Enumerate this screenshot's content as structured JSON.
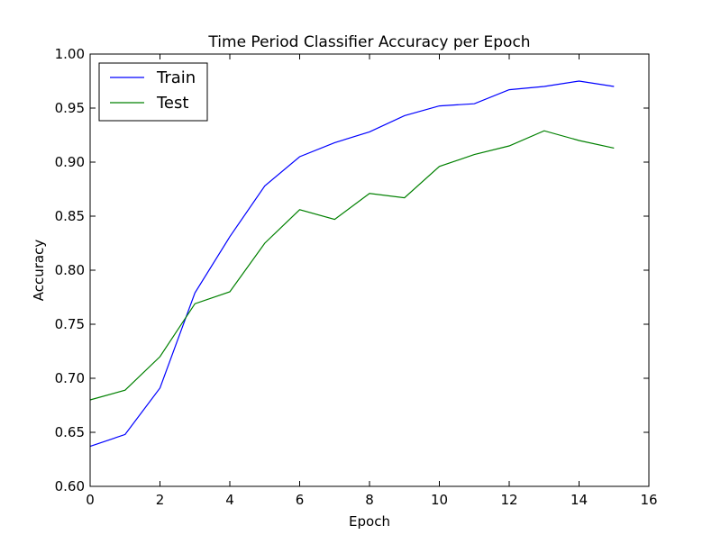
{
  "chart_data": {
    "type": "line",
    "title": "Time Period Classifier Accuracy per Epoch",
    "xlabel": "Epoch",
    "ylabel": "Accuracy",
    "xlim": [
      0,
      16
    ],
    "ylim": [
      0.6,
      1.0
    ],
    "xticks": [
      "0",
      "2",
      "4",
      "6",
      "8",
      "10",
      "12",
      "14",
      "16"
    ],
    "yticks": [
      "0.60",
      "0.65",
      "0.70",
      "0.75",
      "0.80",
      "0.85",
      "0.90",
      "0.95",
      "1.00"
    ],
    "grid": false,
    "legend_position": "top-left",
    "x": [
      0,
      1,
      2,
      3,
      4,
      5,
      6,
      7,
      8,
      9,
      10,
      11,
      12,
      13,
      14,
      15
    ],
    "series": [
      {
        "name": "Train",
        "color": "#0000ff",
        "values": [
          0.637,
          0.648,
          0.691,
          0.779,
          0.831,
          0.878,
          0.905,
          0.918,
          0.928,
          0.943,
          0.952,
          0.954,
          0.967,
          0.97,
          0.975,
          0.97
        ]
      },
      {
        "name": "Test",
        "color": "#008000",
        "values": [
          0.68,
          0.689,
          0.72,
          0.769,
          0.78,
          0.825,
          0.856,
          0.847,
          0.871,
          0.867,
          0.896,
          0.907,
          0.915,
          0.929,
          0.92,
          0.913
        ]
      }
    ]
  }
}
